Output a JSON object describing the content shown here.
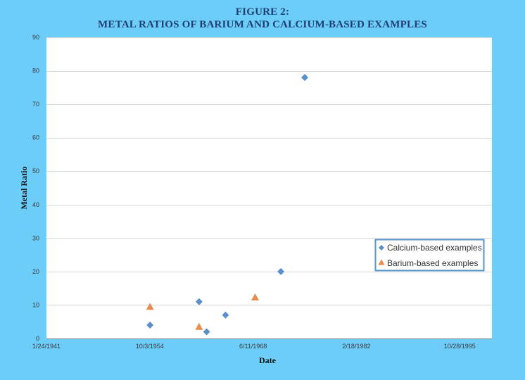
{
  "colors": {
    "background": "#6ccdf9",
    "plot_area": "#ffffff",
    "title": "#1f3f73",
    "calcium_series": "#5b8fca",
    "barium_series": "#ec8a4e",
    "legend_border": "#5593c8"
  },
  "chart_data": {
    "type": "scatter",
    "title": "FIGURE 2:",
    "subtitle": "METAL RATIOS OF BARIUM AND CALCIUM-BASED EXAMPLES",
    "xlabel": "Date",
    "ylabel": "Metal Ratio",
    "x_scale": "date",
    "xlim": [
      "1941-01-24",
      "2000-02-01"
    ],
    "ylim": [
      0,
      90
    ],
    "x_ticks": [
      "1941-01-24",
      "1954-10-03",
      "1968-06-11",
      "1982-02-18",
      "1995-10-28"
    ],
    "x_tick_labels": [
      "1/24/1941",
      "10/3/1954",
      "6/11/1968",
      "2/18/1982",
      "10/28/1995"
    ],
    "y_ticks": [
      0,
      10,
      20,
      30,
      40,
      50,
      60,
      70,
      80,
      90
    ],
    "grid": "horizontal",
    "legend_position": "right",
    "series": [
      {
        "name": "Calcium-based examples",
        "marker": "diamond",
        "points": [
          {
            "x": "1954-10-15",
            "y": 4
          },
          {
            "x": "1961-04-15",
            "y": 11
          },
          {
            "x": "1962-04-15",
            "y": 2
          },
          {
            "x": "1964-10-15",
            "y": 7
          },
          {
            "x": "1972-02-15",
            "y": 20
          },
          {
            "x": "1975-04-15",
            "y": 78
          }
        ]
      },
      {
        "name": "Barium-based examples",
        "marker": "triangle",
        "points": [
          {
            "x": "1954-10-15",
            "y": 9.5
          },
          {
            "x": "1961-04-15",
            "y": 3.5
          },
          {
            "x": "1968-09-15",
            "y": 12.3
          }
        ]
      }
    ]
  }
}
